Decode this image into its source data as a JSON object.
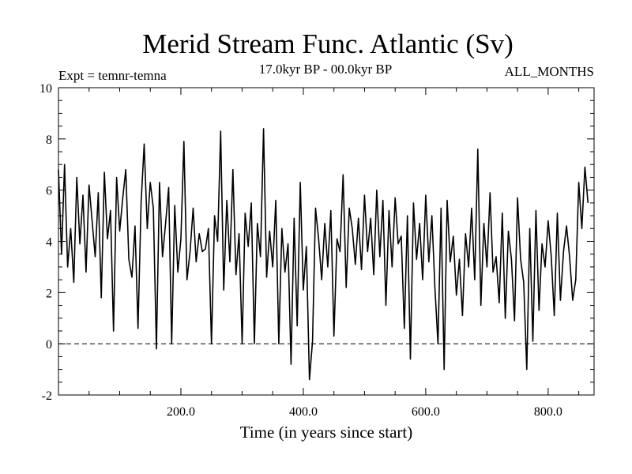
{
  "chart_data": {
    "type": "line",
    "title": "Merid Stream Func. Atlantic (Sv)",
    "subtitle": "17.0kyr BP - 00.0kyr BP",
    "left_label": "Expt = temnr-temna",
    "right_label": "ALL_MONTHS",
    "xlabel": "Time (in years since start)",
    "ylabel": "",
    "xlim": [
      0,
      875
    ],
    "ylim": [
      -2,
      10
    ],
    "x_ticks": [
      200,
      400,
      600,
      800
    ],
    "x_tick_labels": [
      "200.0",
      "400.0",
      "600.0",
      "800.0"
    ],
    "y_ticks": [
      -2,
      0,
      2,
      4,
      6,
      8,
      10
    ],
    "y_tick_labels": [
      "-2",
      "0",
      "2",
      "4",
      "6",
      "8",
      "10"
    ],
    "reference_line": {
      "y": 0,
      "style": "dashed"
    },
    "line_color": "#000000",
    "series": [
      {
        "name": "Expt = temnr-temna",
        "x_start": 0,
        "x_step": 5,
        "values": [
          6.8,
          3.5,
          7.0,
          3.0,
          4.5,
          2.4,
          6.5,
          3.9,
          5.8,
          2.8,
          6.2,
          4.8,
          3.4,
          5.9,
          1.8,
          6.7,
          4.1,
          5.2,
          0.5,
          6.5,
          4.4,
          5.7,
          6.8,
          3.3,
          2.6,
          4.6,
          0.6,
          5.5,
          7.8,
          4.5,
          6.3,
          5.3,
          -0.2,
          6.3,
          3.4,
          4.7,
          6.1,
          0.0,
          5.4,
          2.8,
          4.1,
          7.9,
          2.5,
          3.6,
          5.3,
          3.2,
          4.3,
          3.6,
          3.7,
          4.5,
          0.0,
          5.0,
          4.0,
          8.3,
          2.1,
          5.6,
          3.2,
          6.8,
          2.7,
          4.3,
          0.0,
          5.1,
          3.8,
          5.5,
          0.0,
          4.7,
          3.4,
          8.4,
          2.6,
          4.4,
          3.0,
          5.6,
          0.0,
          4.5,
          2.8,
          3.9,
          -0.8,
          4.9,
          0.7,
          6.3,
          2.1,
          3.8,
          -1.4,
          0.1,
          5.3,
          4.1,
          2.5,
          4.7,
          3.0,
          5.2,
          0.3,
          4.1,
          3.6,
          6.6,
          2.2,
          5.3,
          4.5,
          3.1,
          4.9,
          2.9,
          5.8,
          3.6,
          4.9,
          2.7,
          6.0,
          3.4,
          5.6,
          1.5,
          5.2,
          3.0,
          5.7,
          3.9,
          4.2,
          0.6,
          5.0,
          -0.6,
          5.5,
          3.3,
          4.7,
          2.5,
          5.8,
          3.2,
          5.0,
          2.2,
          0.0,
          5.3,
          -1.0,
          5.6,
          3.2,
          4.2,
          1.9,
          3.3,
          1.1,
          4.3,
          3.0,
          5.3,
          2.5,
          7.6,
          1.5,
          4.7,
          3.0,
          5.9,
          2.8,
          3.4,
          1.6,
          5.1,
          1.0,
          4.4,
          3.3,
          0.9,
          5.7,
          3.3,
          2.4,
          -1.0,
          4.5,
          0.1,
          5.2,
          1.3,
          3.9,
          3.0,
          4.8,
          3.4,
          1.1,
          5.1,
          1.7,
          3.6,
          4.6,
          3.4,
          1.7,
          2.5,
          6.3,
          4.5,
          6.9,
          5.5
        ]
      }
    ]
  }
}
